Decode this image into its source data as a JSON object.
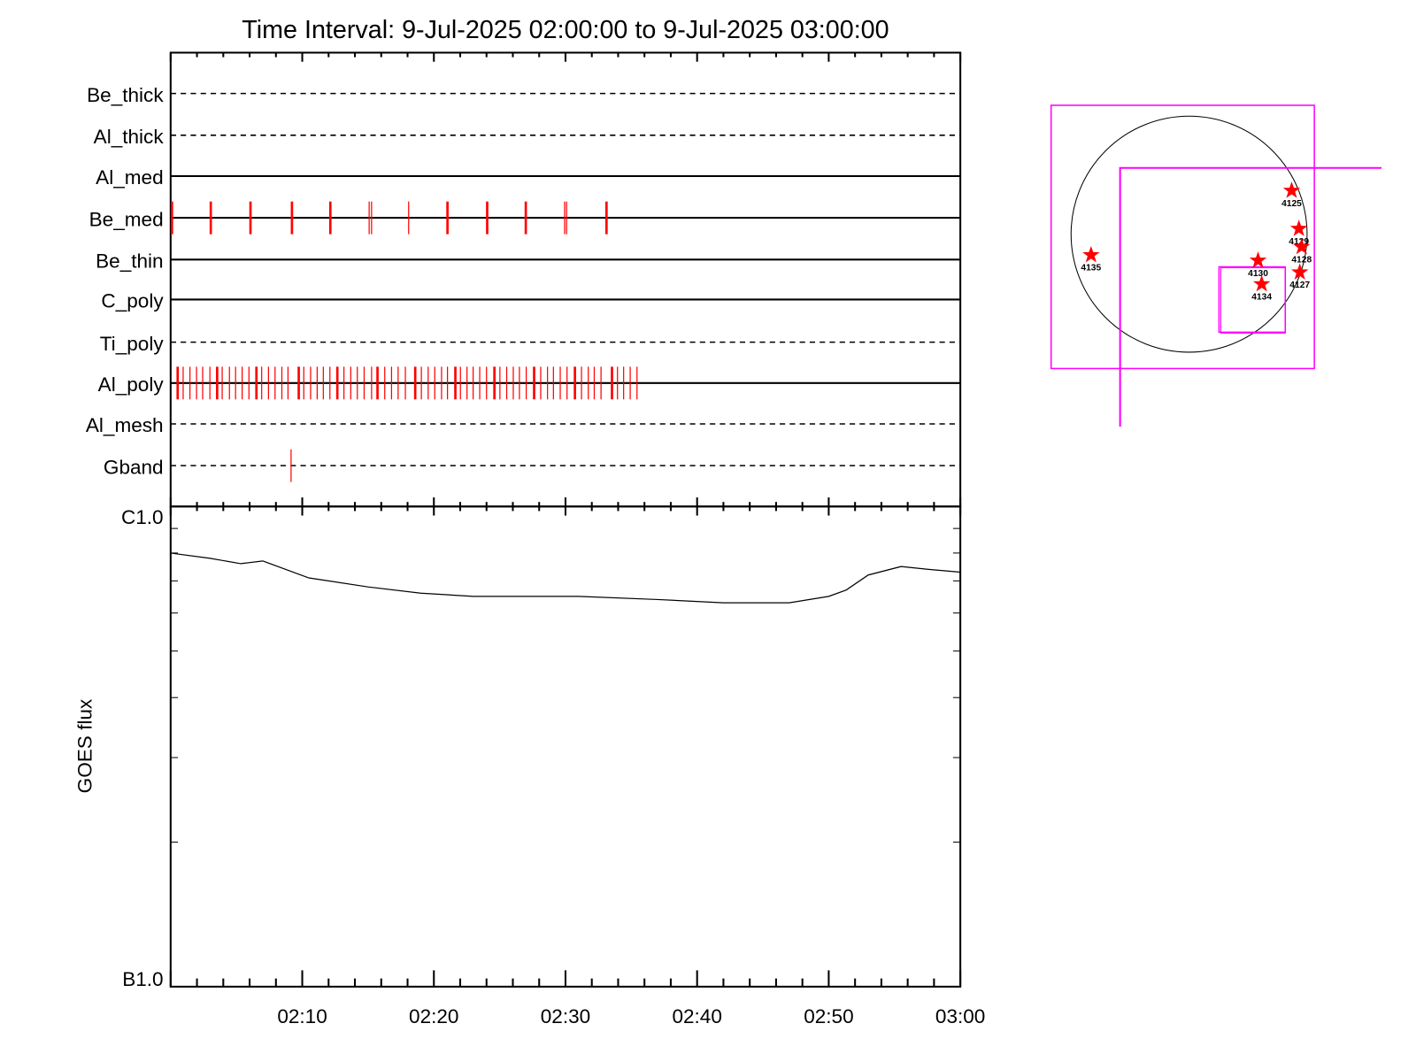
{
  "chart_data": [
    {
      "type": "timeline",
      "title": "Time Interval:  9-Jul-2025 02:00:00 to  9-Jul-2025 03:00:00",
      "xlim": [
        "02:00:00",
        "03:00:00"
      ],
      "x_tick_labels": [
        "02:10",
        "02:20",
        "02:30",
        "02:40",
        "02:50",
        "03:00"
      ],
      "rows": [
        {
          "name": "Be_thick",
          "style": "dashed",
          "times": []
        },
        {
          "name": "Al_thick",
          "style": "dashed",
          "times": []
        },
        {
          "name": "Al_med",
          "style": "solid",
          "times": []
        },
        {
          "name": "Be_med",
          "style": "solid",
          "times": [
            "02:00:06",
            "02:03:03",
            "02:06:04",
            "02:09:13",
            "02:12:08",
            "02:15:05",
            "02:15:16",
            "02:18:05",
            "02:21:02",
            "02:24:03",
            "02:26:59",
            "02:29:56",
            "02:30:05",
            "02:33:07"
          ],
          "emphasized": [
            "02:00:06",
            "02:03:03",
            "02:06:04",
            "02:09:13",
            "02:12:08",
            "02:21:02",
            "02:24:03",
            "02:26:59",
            "02:33:07"
          ]
        },
        {
          "name": "Be_thin",
          "style": "solid",
          "times": []
        },
        {
          "name": "C_poly",
          "style": "solid",
          "times": []
        },
        {
          "name": "Ti_poly",
          "style": "dashed",
          "times": []
        },
        {
          "name": "Al_poly",
          "style": "solid",
          "times": [
            "02:00:32",
            "02:00:57",
            "02:01:28",
            "02:01:58",
            "02:02:26",
            "02:02:59",
            "02:03:32",
            "02:03:55",
            "02:04:28",
            "02:04:56",
            "02:05:26",
            "02:05:57",
            "02:06:31",
            "02:06:55",
            "02:07:26",
            "02:07:56",
            "02:08:27",
            "02:08:55",
            "02:09:44",
            "02:10:07",
            "02:10:38",
            "02:11:08",
            "02:11:36",
            "02:12:06",
            "02:12:40",
            "02:13:10",
            "02:13:41",
            "02:14:11",
            "02:14:42",
            "02:15:16",
            "02:15:43",
            "02:16:16",
            "02:16:47",
            "02:17:17",
            "02:17:50",
            "02:18:35",
            "02:19:03",
            "02:19:34",
            "02:20:04",
            "02:20:35",
            "02:21:02",
            "02:21:38",
            "02:22:01",
            "02:22:31",
            "02:22:59",
            "02:23:29",
            "02:24:00",
            "02:24:36",
            "02:25:01",
            "02:25:32",
            "02:26:02",
            "02:26:30",
            "02:27:01",
            "02:27:37",
            "02:28:07",
            "02:28:38",
            "02:29:05",
            "02:29:36",
            "02:30:07",
            "02:30:43",
            "02:31:13",
            "02:31:44",
            "02:32:11",
            "02:32:42",
            "02:33:32",
            "02:33:57",
            "02:34:25",
            "02:34:55",
            "02:35:26"
          ],
          "emphasized": [
            "02:00:32",
            "02:03:32",
            "02:06:31",
            "02:09:44",
            "02:12:40",
            "02:15:43",
            "02:18:35",
            "02:21:38",
            "02:24:36",
            "02:27:37",
            "02:30:43",
            "02:33:32"
          ]
        },
        {
          "name": "Al_mesh",
          "style": "dashed",
          "times": []
        },
        {
          "name": "Gband",
          "style": "dashed",
          "times": [
            "02:09:09"
          ]
        }
      ],
      "mark_color": "#ff0000"
    },
    {
      "type": "line",
      "ylabel": "GOES flux",
      "y_scale": "log",
      "ylim": [
        1e-07,
        1e-06
      ],
      "y_tick_labels": [
        "B1.0",
        "C1.0"
      ],
      "xlim": [
        "02:00:00",
        "03:00:00"
      ],
      "x_tick_labels": [
        "02:10",
        "02:20",
        "02:30",
        "02:40",
        "02:50",
        "03:00"
      ],
      "series": [
        {
          "x": [
            "02:00:00",
            "02:03:00",
            "02:05:20",
            "02:07:00",
            "02:10:30",
            "02:15:00",
            "02:19:00",
            "02:23:00",
            "02:27:00",
            "02:31:00",
            "02:37:00",
            "02:42:00",
            "02:47:00",
            "02:50:00",
            "02:51:20",
            "02:53:00",
            "02:55:30",
            "02:57:30",
            "03:00:00"
          ],
          "y": [
            8e-07,
            7.8e-07,
            7.6e-07,
            7.7e-07,
            7.1e-07,
            6.8e-07,
            6.6e-07,
            6.5e-07,
            6.5e-07,
            6.5e-07,
            6.4e-07,
            6.3e-07,
            6.3e-07,
            6.5e-07,
            6.7e-07,
            7.2e-07,
            7.5e-07,
            7.4e-07,
            7.3e-07
          ],
          "color": "#000000"
        }
      ]
    },
    {
      "type": "diagram",
      "regions": [
        "4125",
        "4129",
        "4128",
        "4130",
        "4127",
        "4134",
        "4135"
      ],
      "marker_color": "#ff0000",
      "fov_color": "#ff00ff",
      "disk_color": "#000000"
    }
  ]
}
